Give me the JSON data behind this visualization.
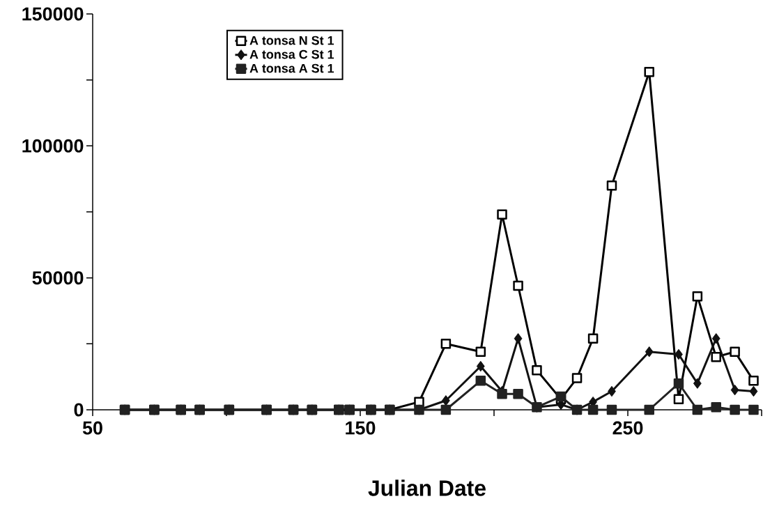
{
  "chart_data": {
    "type": "line",
    "xlabel": "Julian Date",
    "x": [
      62,
      73,
      83,
      90,
      101,
      115,
      125,
      132,
      142,
      146,
      154,
      161,
      172,
      182,
      195,
      203,
      209,
      216,
      225,
      231,
      237,
      244,
      258,
      269,
      276,
      283,
      290,
      297
    ],
    "series": [
      {
        "name": "A tonsa N St 1",
        "color": "#000000",
        "marker": "square",
        "values": [
          0,
          0,
          0,
          0,
          0,
          0,
          0,
          0,
          0,
          0,
          0,
          0,
          3000,
          25000,
          22000,
          74000,
          47000,
          15000,
          4000,
          12000,
          27000,
          85000,
          128000,
          4000,
          43000,
          20000,
          22000,
          11000
        ]
      },
      {
        "name": "A tonsa C St 1",
        "color": "#111111",
        "marker": "diamond",
        "values": [
          0,
          0,
          0,
          0,
          0,
          0,
          0,
          0,
          0,
          0,
          0,
          0,
          0,
          3500,
          16500,
          7000,
          27000,
          1000,
          2000,
          0,
          3000,
          7000,
          22000,
          21000,
          10000,
          27000,
          7500,
          7000
        ]
      },
      {
        "name": "A tonsa A St 1",
        "color": "#222222",
        "marker": "square",
        "values": [
          0,
          0,
          0,
          0,
          0,
          0,
          0,
          0,
          0,
          0,
          0,
          0,
          0,
          0,
          11000,
          6000,
          6000,
          1000,
          5000,
          0,
          0,
          0,
          0,
          10000,
          0,
          1000,
          0,
          0
        ]
      }
    ],
    "xlim": [
      50,
      300
    ],
    "ylim": [
      0,
      150000
    ],
    "xticks": [
      50,
      {
        "value": 100,
        "label": null
      },
      150,
      {
        "value": 200,
        "label": null
      },
      250,
      {
        "value": 300,
        "label": null
      }
    ],
    "yticks": [
      0,
      {
        "value": 25000,
        "label": null
      },
      50000,
      {
        "value": 75000,
        "label": null
      },
      100000,
      {
        "value": 125000,
        "label": null
      },
      150000
    ],
    "legend": "top left",
    "grid": false,
    "line_style": "solid"
  }
}
